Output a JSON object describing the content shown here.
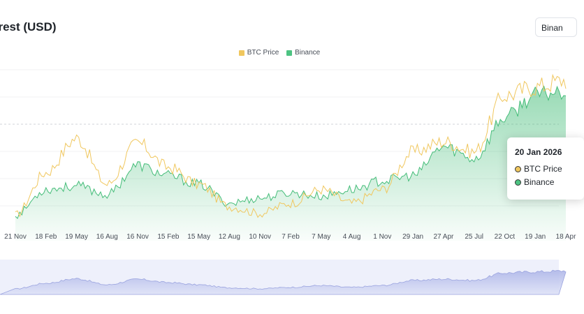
{
  "header": {
    "title": "erest (USD)",
    "exchange_button": "Binan"
  },
  "chart_data": {
    "type": "line",
    "title": "erest (USD)",
    "categories": [
      "21 Nov",
      "18 Feb",
      "19 May",
      "16 Aug",
      "16 Nov",
      "15 Feb",
      "15 May",
      "12 Aug",
      "10 Nov",
      "7 Feb",
      "7 May",
      "4 Aug",
      "1 Nov",
      "29 Jan",
      "27 Apr",
      "25 Jul",
      "22 Oct",
      "19 Jan",
      "18 Apr"
    ],
    "series": [
      {
        "name": "BTC Price",
        "color": "#f0b90b",
        "values": [
          15,
          40,
          60,
          33,
          57,
          43,
          33,
          20,
          16,
          22,
          30,
          22,
          30,
          52,
          58,
          52,
          85,
          90,
          94
        ]
      },
      {
        "name": "Binance",
        "color": "#45bd79",
        "values": [
          15,
          30,
          32,
          27,
          44,
          38,
          33,
          22,
          25,
          28,
          26,
          30,
          35,
          38,
          55,
          48,
          72,
          85,
          88
        ]
      }
    ],
    "legend_position": "top-center",
    "grid": true
  },
  "tooltip": {
    "date": "20 Jan 2026",
    "rows": [
      "BTC Price",
      "Binance"
    ]
  }
}
